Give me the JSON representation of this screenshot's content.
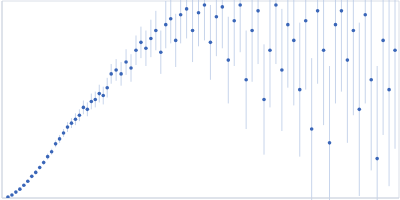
{
  "chart_data": {
    "type": "scatter",
    "marker": "circle",
    "color": "#3a66b8",
    "error_color": "#b9c9e6",
    "grid": true,
    "tick_labels": false,
    "xlim": [
      0,
      400
    ],
    "ylim": [
      0,
      200
    ],
    "xticks": [
      115
    ],
    "yticks": [
      100
    ],
    "x": [
      6,
      10,
      14,
      18,
      22,
      26,
      30,
      34,
      38,
      42,
      46,
      50,
      54,
      58,
      62,
      66,
      70,
      74,
      78,
      82,
      86,
      90,
      94,
      98,
      102,
      106,
      110,
      115,
      120,
      125,
      130,
      135,
      140,
      145,
      150,
      155,
      160,
      165,
      170,
      175,
      180,
      186,
      192,
      198,
      204,
      210,
      216,
      222,
      228,
      234,
      240,
      246,
      252,
      258,
      264,
      270,
      276,
      282,
      288,
      294,
      300,
      306,
      312,
      318,
      324,
      330,
      336,
      342,
      348,
      354,
      360,
      366,
      372,
      378,
      384,
      390,
      396
    ],
    "values": [
      1,
      3,
      6,
      9,
      13,
      17,
      22,
      26,
      31,
      36,
      42,
      47,
      55,
      60,
      66,
      72,
      76,
      80,
      84,
      92,
      90,
      98,
      100,
      106,
      104,
      112,
      126,
      130,
      126,
      138,
      132,
      150,
      158,
      152,
      162,
      170,
      148,
      176,
      182,
      160,
      186,
      192,
      170,
      188,
      196,
      158,
      184,
      194,
      140,
      180,
      196,
      120,
      170,
      190,
      100,
      150,
      196,
      130,
      176,
      160,
      110,
      180,
      70,
      190,
      150,
      56,
      176,
      190,
      140,
      170,
      90,
      186,
      120,
      40,
      160,
      110,
      150
    ],
    "errors": [
      0.5,
      0.5,
      0.8,
      1,
      1,
      1.5,
      1.5,
      2,
      2,
      2.5,
      3,
      3,
      3.5,
      4,
      4,
      5,
      5,
      6,
      6,
      7,
      7,
      8,
      8,
      9,
      9,
      10,
      10,
      11,
      12,
      13,
      14,
      15,
      16,
      18,
      19,
      20,
      22,
      24,
      25,
      27,
      29,
      30,
      32,
      34,
      36,
      38,
      40,
      42,
      44,
      46,
      48,
      50,
      52,
      54,
      56,
      58,
      60,
      62,
      64,
      66,
      68,
      70,
      72,
      74,
      76,
      78,
      80,
      82,
      84,
      86,
      88,
      90,
      92,
      94,
      96,
      98,
      100
    ]
  }
}
